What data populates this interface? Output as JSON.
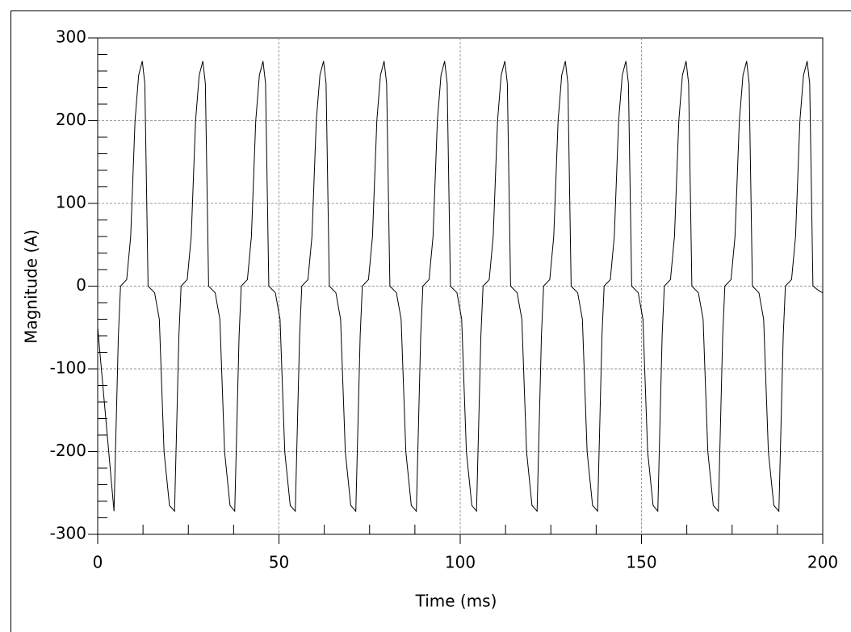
{
  "chart_data": {
    "type": "line",
    "xlabel": "Time (ms)",
    "ylabel": "Magnitude (A)",
    "x": [
      0,
      4.5,
      5.7,
      6.3,
      8,
      9.1,
      10.3,
      11.3,
      12.3,
      13,
      13.9,
      15.7,
      17,
      18.3,
      19.8,
      21.2,
      22.4,
      23,
      24.7,
      25.8,
      27,
      28,
      29,
      29.7,
      30.6,
      32.4,
      33.7,
      35,
      36.5,
      37.8,
      39,
      39.6,
      41.3,
      42.4,
      43.6,
      44.6,
      45.6,
      46.3,
      47.2,
      49,
      50.3,
      51.6,
      53.1,
      54.5,
      55.7,
      56.3,
      58,
      59.1,
      60.3,
      61.3,
      62.3,
      63,
      63.9,
      65.7,
      67,
      68.3,
      69.8,
      71.2,
      72.4,
      73,
      74.7,
      75.8,
      77,
      78,
      79,
      79.7,
      80.6,
      82.4,
      83.7,
      85,
      86.5,
      87.9,
      89.1,
      89.7,
      91.4,
      92.5,
      93.7,
      94.7,
      95.7,
      96.4,
      97.3,
      99.1,
      100.4,
      101.7,
      103.2,
      104.5,
      105.7,
      106.3,
      108,
      109.1,
      110.3,
      111.3,
      112.3,
      113,
      113.9,
      115.7,
      117,
      118.3,
      119.8,
      121.2,
      122.4,
      123,
      124.7,
      125.8,
      127,
      128,
      129,
      129.7,
      130.6,
      132.4,
      133.7,
      135,
      136.5,
      137.9,
      139.1,
      139.7,
      141.4,
      142.5,
      143.7,
      144.7,
      145.7,
      146.4,
      147.3,
      149.1,
      150.4,
      151.7,
      153.2,
      154.5,
      155.7,
      156.3,
      158,
      159.1,
      160.3,
      161.3,
      162.3,
      163,
      163.9,
      165.7,
      167,
      168.3,
      169.8,
      171.2,
      172.4,
      173,
      174.7,
      175.8,
      177,
      178,
      179,
      179.7,
      180.6,
      182.4,
      183.7,
      185,
      186.5,
      187.9,
      189.1,
      189.7,
      191.4,
      192.5,
      193.7,
      194.7,
      195.7,
      196.4,
      197.3,
      199.1,
      200
    ],
    "values": [
      -50,
      -272,
      -60,
      0,
      8,
      60,
      200,
      255,
      272,
      245,
      0,
      -8,
      -40,
      -200,
      -265,
      -272,
      -60,
      0,
      8,
      60,
      200,
      255,
      272,
      245,
      0,
      -8,
      -40,
      -200,
      -265,
      -272,
      -60,
      0,
      8,
      60,
      200,
      255,
      272,
      245,
      0,
      -8,
      -40,
      -200,
      -265,
      -272,
      -60,
      0,
      8,
      60,
      200,
      255,
      272,
      245,
      0,
      -8,
      -40,
      -200,
      -265,
      -272,
      -60,
      0,
      8,
      60,
      200,
      255,
      272,
      245,
      0,
      -8,
      -40,
      -200,
      -265,
      -272,
      -60,
      0,
      8,
      60,
      200,
      255,
      272,
      245,
      0,
      -8,
      -40,
      -200,
      -265,
      -272,
      -60,
      0,
      8,
      60,
      200,
      255,
      272,
      245,
      0,
      -8,
      -40,
      -200,
      -265,
      -272,
      -60,
      0,
      8,
      60,
      200,
      255,
      272,
      245,
      0,
      -8,
      -40,
      -200,
      -265,
      -272,
      -60,
      0,
      8,
      60,
      200,
      255,
      272,
      245,
      0,
      -8,
      -40,
      -200,
      -265,
      -272,
      -60,
      0,
      8,
      60,
      200,
      255,
      272,
      245,
      0,
      -8,
      -40,
      -200,
      -265,
      -272,
      -60,
      0,
      8,
      60,
      200,
      255,
      272,
      245,
      0,
      -8,
      -40,
      -200,
      -265,
      -272,
      -60,
      0,
      8,
      60,
      200,
      255,
      272,
      245,
      0,
      -6,
      -8
    ],
    "color": "#000000",
    "xlim": [
      0,
      200
    ],
    "xticks": [
      0,
      50,
      100,
      150,
      200
    ],
    "ylim": [
      -300,
      300
    ],
    "yticks": [
      -300,
      -200,
      -100,
      0,
      100,
      200,
      300
    ],
    "grid": true
  }
}
